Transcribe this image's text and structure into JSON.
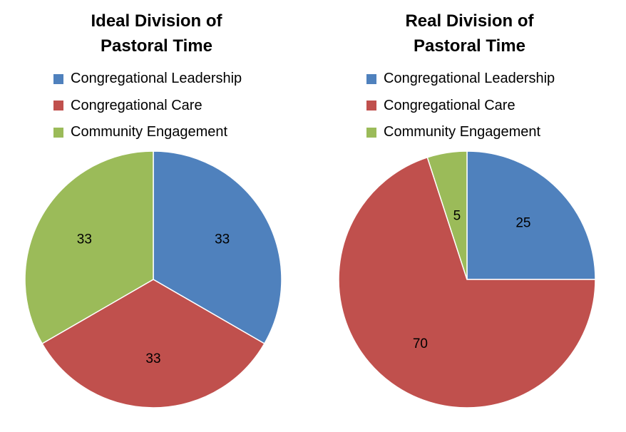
{
  "chart_data": [
    {
      "type": "pie",
      "title_lines": [
        "Ideal Division of",
        "Pastoral Time"
      ],
      "categories": [
        "Congregational Leadership",
        "Congregational Care",
        "Community Engagement"
      ],
      "values": [
        33,
        33,
        33
      ],
      "labels": [
        "33",
        "33",
        "33"
      ],
      "colors": [
        "#4F81BD",
        "#C0504D",
        "#9BBB59"
      ],
      "legend": "top"
    },
    {
      "type": "pie",
      "title_lines": [
        "Real Division of",
        "Pastoral Time"
      ],
      "categories": [
        "Congregational Leadership",
        "Congregational Care",
        "Community Engagement"
      ],
      "values": [
        25,
        70,
        5
      ],
      "labels": [
        "25",
        "70",
        "5"
      ],
      "colors": [
        "#4F81BD",
        "#C0504D",
        "#9BBB59"
      ],
      "legend": "top"
    }
  ]
}
